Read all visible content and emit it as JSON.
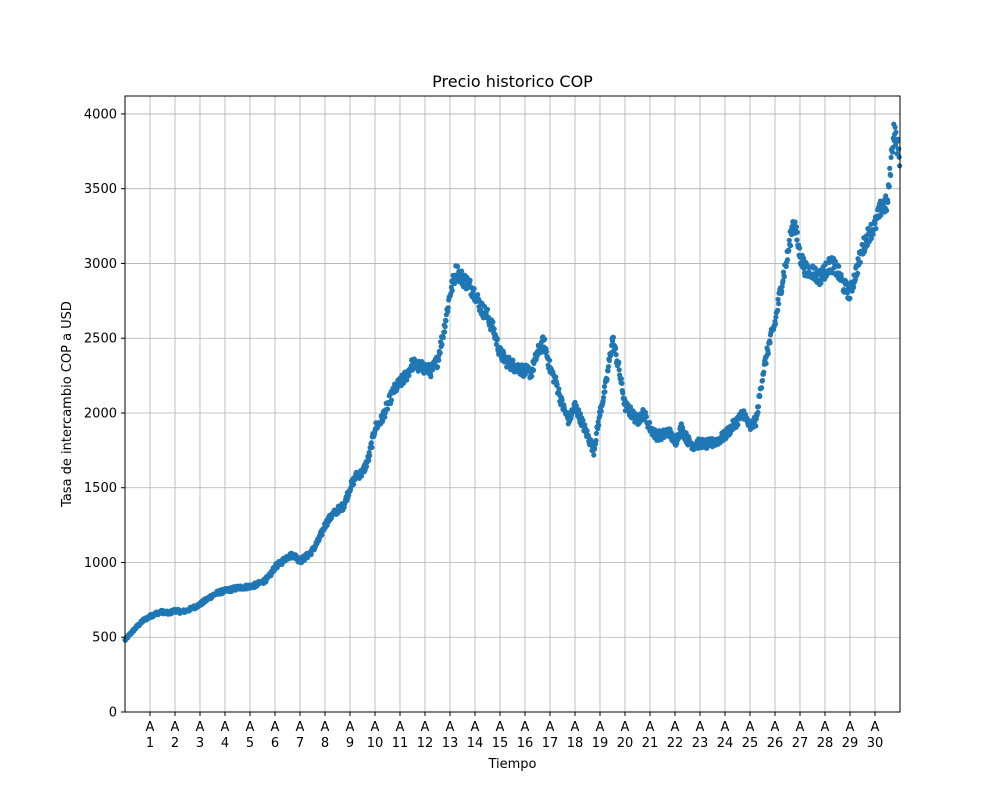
{
  "chart_data": {
    "type": "scatter",
    "title": "Precio historico COP",
    "xlabel": "Tiempo",
    "ylabel": "Tasa de intercambio COP a USD",
    "ylim": [
      0,
      4120
    ],
    "xlim": [
      0,
      31.0
    ],
    "yticks": [
      0,
      500,
      1000,
      1500,
      2000,
      2500,
      3000,
      3500,
      4000
    ],
    "xticks": [
      {
        "pos": 1,
        "line1": "A",
        "line2": "1"
      },
      {
        "pos": 2,
        "line1": "A",
        "line2": "2"
      },
      {
        "pos": 3,
        "line1": "A",
        "line2": "3"
      },
      {
        "pos": 4,
        "line1": "A",
        "line2": "4"
      },
      {
        "pos": 5,
        "line1": "A",
        "line2": "5"
      },
      {
        "pos": 6,
        "line1": "A",
        "line2": "6"
      },
      {
        "pos": 7,
        "line1": "A",
        "line2": "7"
      },
      {
        "pos": 8,
        "line1": "A",
        "line2": "8"
      },
      {
        "pos": 9,
        "line1": "A",
        "line2": "9"
      },
      {
        "pos": 10,
        "line1": "A",
        "line2": "10"
      },
      {
        "pos": 11,
        "line1": "A",
        "line2": "11"
      },
      {
        "pos": 12,
        "line1": "A",
        "line2": "12"
      },
      {
        "pos": 13,
        "line1": "A",
        "line2": "13"
      },
      {
        "pos": 14,
        "line1": "A",
        "line2": "14"
      },
      {
        "pos": 15,
        "line1": "A",
        "line2": "15"
      },
      {
        "pos": 16,
        "line1": "A",
        "line2": "16"
      },
      {
        "pos": 17,
        "line1": "A",
        "line2": "17"
      },
      {
        "pos": 18,
        "line1": "A",
        "line2": "18"
      },
      {
        "pos": 19,
        "line1": "A",
        "line2": "19"
      },
      {
        "pos": 20,
        "line1": "A",
        "line2": "20"
      },
      {
        "pos": 21,
        "line1": "A",
        "line2": "21"
      },
      {
        "pos": 22,
        "line1": "A",
        "line2": "22"
      },
      {
        "pos": 23,
        "line1": "A",
        "line2": "23"
      },
      {
        "pos": 24,
        "line1": "A",
        "line2": "24"
      },
      {
        "pos": 25,
        "line1": "A",
        "line2": "25"
      },
      {
        "pos": 26,
        "line1": "A",
        "line2": "26"
      },
      {
        "pos": 27,
        "line1": "A",
        "line2": "27"
      },
      {
        "pos": 28,
        "line1": "A",
        "line2": "28"
      },
      {
        "pos": 29,
        "line1": "A",
        "line2": "29"
      },
      {
        "pos": 30,
        "line1": "A",
        "line2": "30"
      }
    ],
    "grid": true,
    "marker_color": "#1f77b4",
    "series": [
      {
        "x": [
          0.0,
          0.25,
          0.5,
          0.75,
          1.0,
          1.25,
          1.5,
          1.75,
          2.0,
          2.25,
          2.5,
          2.75,
          3.0,
          3.25,
          3.5,
          3.75,
          4.0,
          4.25,
          4.5,
          4.75,
          5.0,
          5.25,
          5.5,
          5.75,
          6.0,
          6.25,
          6.5,
          6.75,
          7.0,
          7.25,
          7.5,
          7.75,
          8.0,
          8.25,
          8.5,
          8.75,
          9.0,
          9.25,
          9.5,
          9.75,
          10.0,
          10.25,
          10.5,
          10.75,
          11.0,
          11.25,
          11.5,
          11.75,
          12.0,
          12.25,
          12.5,
          12.75,
          13.0,
          13.25,
          13.5,
          13.75,
          14.0,
          14.25,
          14.5,
          14.75,
          15.0,
          15.25,
          15.5,
          15.75,
          16.0,
          16.25,
          16.5,
          16.75,
          17.0,
          17.25,
          17.5,
          17.75,
          18.0,
          18.25,
          18.5,
          18.75,
          19.0,
          19.25,
          19.5,
          19.75,
          20.0,
          20.25,
          20.5,
          20.75,
          21.0,
          21.25,
          21.5,
          21.75,
          22.0,
          22.25,
          22.5,
          22.75,
          23.0,
          23.25,
          23.5,
          23.75,
          24.0,
          24.25,
          24.5,
          24.75,
          25.0,
          25.25,
          25.5,
          25.75,
          26.0,
          26.25,
          26.5,
          26.75,
          27.0,
          27.25,
          27.5,
          27.75,
          28.0,
          28.25,
          28.5,
          28.75,
          29.0,
          29.25,
          29.5,
          29.75,
          30.0,
          30.25,
          30.5,
          30.75,
          31.0
        ],
        "y": [
          480,
          530,
          575,
          615,
          640,
          660,
          670,
          660,
          680,
          670,
          680,
          700,
          720,
          750,
          780,
          800,
          810,
          820,
          830,
          835,
          840,
          850,
          870,
          900,
          970,
          1000,
          1040,
          1050,
          1010,
          1040,
          1080,
          1150,
          1250,
          1310,
          1350,
          1380,
          1500,
          1580,
          1600,
          1700,
          1900,
          1950,
          2050,
          2150,
          2200,
          2250,
          2330,
          2310,
          2300,
          2280,
          2350,
          2550,
          2800,
          2950,
          2900,
          2860,
          2800,
          2700,
          2650,
          2550,
          2400,
          2350,
          2320,
          2300,
          2280,
          2270,
          2400,
          2480,
          2300,
          2200,
          2050,
          1950,
          2050,
          1950,
          1850,
          1750,
          2000,
          2200,
          2500,
          2300,
          2050,
          2000,
          1950,
          2000,
          1900,
          1850,
          1850,
          1880,
          1800,
          1900,
          1820,
          1780,
          1800,
          1790,
          1800,
          1820,
          1850,
          1900,
          1950,
          2000,
          1900,
          1950,
          2250,
          2450,
          2600,
          2850,
          3050,
          3300,
          3050,
          2950,
          2950,
          2900,
          2950,
          3000,
          2950,
          2850,
          2800,
          2950,
          3100,
          3200,
          3250,
          3380,
          3400,
          3900,
          3700
        ]
      }
    ]
  }
}
